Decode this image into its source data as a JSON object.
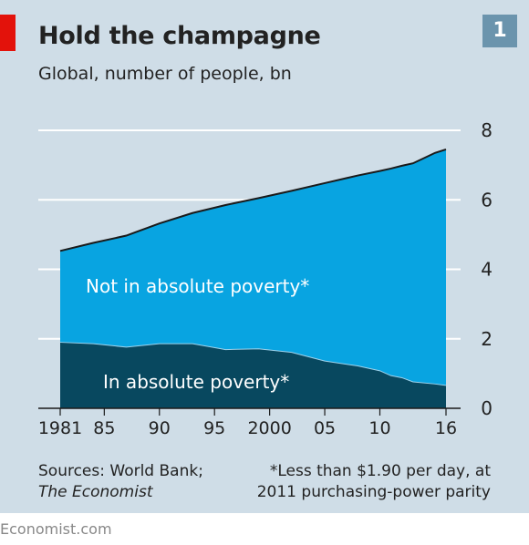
{
  "header": {
    "title": "Hold the champagne",
    "subtitle": "Global, number of people, bn",
    "badge": "1"
  },
  "footer": {
    "source_line1": "Sources: World Bank;",
    "source_line2": "The Economist",
    "note_line1": "*Less than $1.90 per day, at",
    "note_line2": "2011 purchasing-power parity",
    "brand": "Economist.com"
  },
  "colors": {
    "panel": "#cfdde7",
    "not_poverty": "#08a4e1",
    "poverty": "#08485f",
    "total_line": "#1a1a1a",
    "gridline": "#ffffff",
    "brand_red": "#e3120b",
    "badge": "#6b94ad"
  },
  "chart_data": {
    "type": "area",
    "stacked": true,
    "x": [
      1981,
      1984,
      1987,
      1990,
      1993,
      1996,
      1999,
      2002,
      2005,
      2008,
      2010,
      2011,
      2012,
      2013,
      2015,
      2016
    ],
    "series": [
      {
        "name": "In absolute poverty*",
        "values": [
          1.9,
          1.86,
          1.76,
          1.86,
          1.86,
          1.69,
          1.71,
          1.61,
          1.36,
          1.22,
          1.08,
          0.94,
          0.88,
          0.76,
          0.7,
          0.66
        ]
      },
      {
        "name": "Not in absolute poverty*",
        "values": [
          2.63,
          2.9,
          3.21,
          3.46,
          3.76,
          4.16,
          4.34,
          4.65,
          5.12,
          5.48,
          5.75,
          5.96,
          6.1,
          6.29,
          6.65,
          6.79
        ]
      }
    ],
    "total": [
      4.53,
      4.76,
      4.97,
      5.32,
      5.62,
      5.85,
      6.05,
      6.26,
      6.48,
      6.7,
      6.83,
      6.9,
      6.98,
      7.05,
      7.35,
      7.45
    ],
    "xlim": [
      1981,
      2016
    ],
    "ylim": [
      0,
      8
    ],
    "yticks": [
      "0",
      "2",
      "4",
      "6",
      "8"
    ],
    "ytick_values": [
      0,
      2,
      4,
      6,
      8
    ],
    "xticks": [
      "1981",
      "85",
      "90",
      "95",
      "2000",
      "05",
      "10",
      "16"
    ],
    "xtick_values": [
      1981,
      1985,
      1990,
      1995,
      2000,
      2005,
      2010,
      2016
    ],
    "y_axis_side": "right",
    "grid": true,
    "annotations": {
      "not_poverty_label": "Not in absolute poverty*",
      "poverty_label": "In absolute poverty*"
    }
  }
}
